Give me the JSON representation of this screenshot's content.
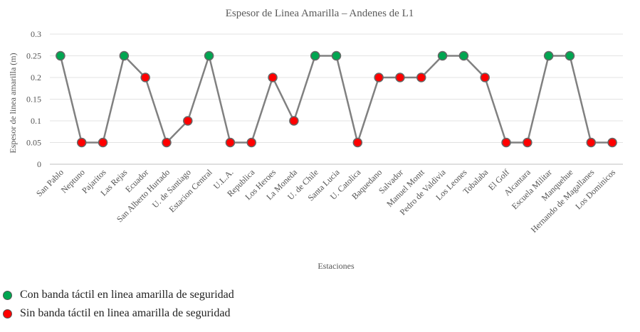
{
  "chart_data": {
    "type": "line",
    "title": "Espesor de Linea Amarilla – Andenes de L1",
    "xlabel": "Estaciones",
    "ylabel": "Espesor de linea amarilla (m)",
    "ylim": [
      0,
      0.3
    ],
    "yticks": [
      "0",
      "0.05",
      "0.1",
      "0.15",
      "0.2",
      "0.25",
      "0.3"
    ],
    "grid": true,
    "line_color": "#808080",
    "categories": [
      "San Pablo",
      "Neptuno",
      "Pajaritos",
      "Las Rejas",
      "Ecuador",
      "San Alberto Hurtado",
      "U. de Santiago",
      "Estacion Central",
      "U.L.A.",
      "Republica",
      "Los Heroes",
      "La Moneda",
      "U. de Chile",
      "Santa Lucia",
      "U. Catolica",
      "Baquedano",
      "Salvador",
      "Manuel Montt",
      "Pedro de Valdivia",
      "Los Leones",
      "Tobalaba",
      "El Golf",
      "Alcantara",
      "Escuela Militar",
      "Manquehue",
      "Hernando de Magallanes",
      "Los Dominicos"
    ],
    "values": [
      0.25,
      0.05,
      0.05,
      0.25,
      0.2,
      0.05,
      0.1,
      0.25,
      0.05,
      0.05,
      0.2,
      0.1,
      0.25,
      0.25,
      0.05,
      0.2,
      0.2,
      0.2,
      0.25,
      0.25,
      0.2,
      0.05,
      0.05,
      0.25,
      0.25,
      0.05,
      0.05
    ],
    "has_tactile_band": [
      true,
      false,
      false,
      true,
      false,
      false,
      false,
      true,
      false,
      false,
      false,
      false,
      true,
      true,
      false,
      false,
      false,
      false,
      true,
      true,
      false,
      false,
      false,
      true,
      true,
      false,
      false
    ],
    "colors": {
      "with_band": "#00a651",
      "without_band": "#ff0000"
    },
    "legend": [
      {
        "label": "Con banda táctil en linea amarilla de seguridad",
        "color": "#00a651"
      },
      {
        "label": "Sin banda táctil en linea amarilla de seguridad",
        "color": "#ff0000"
      }
    ]
  }
}
